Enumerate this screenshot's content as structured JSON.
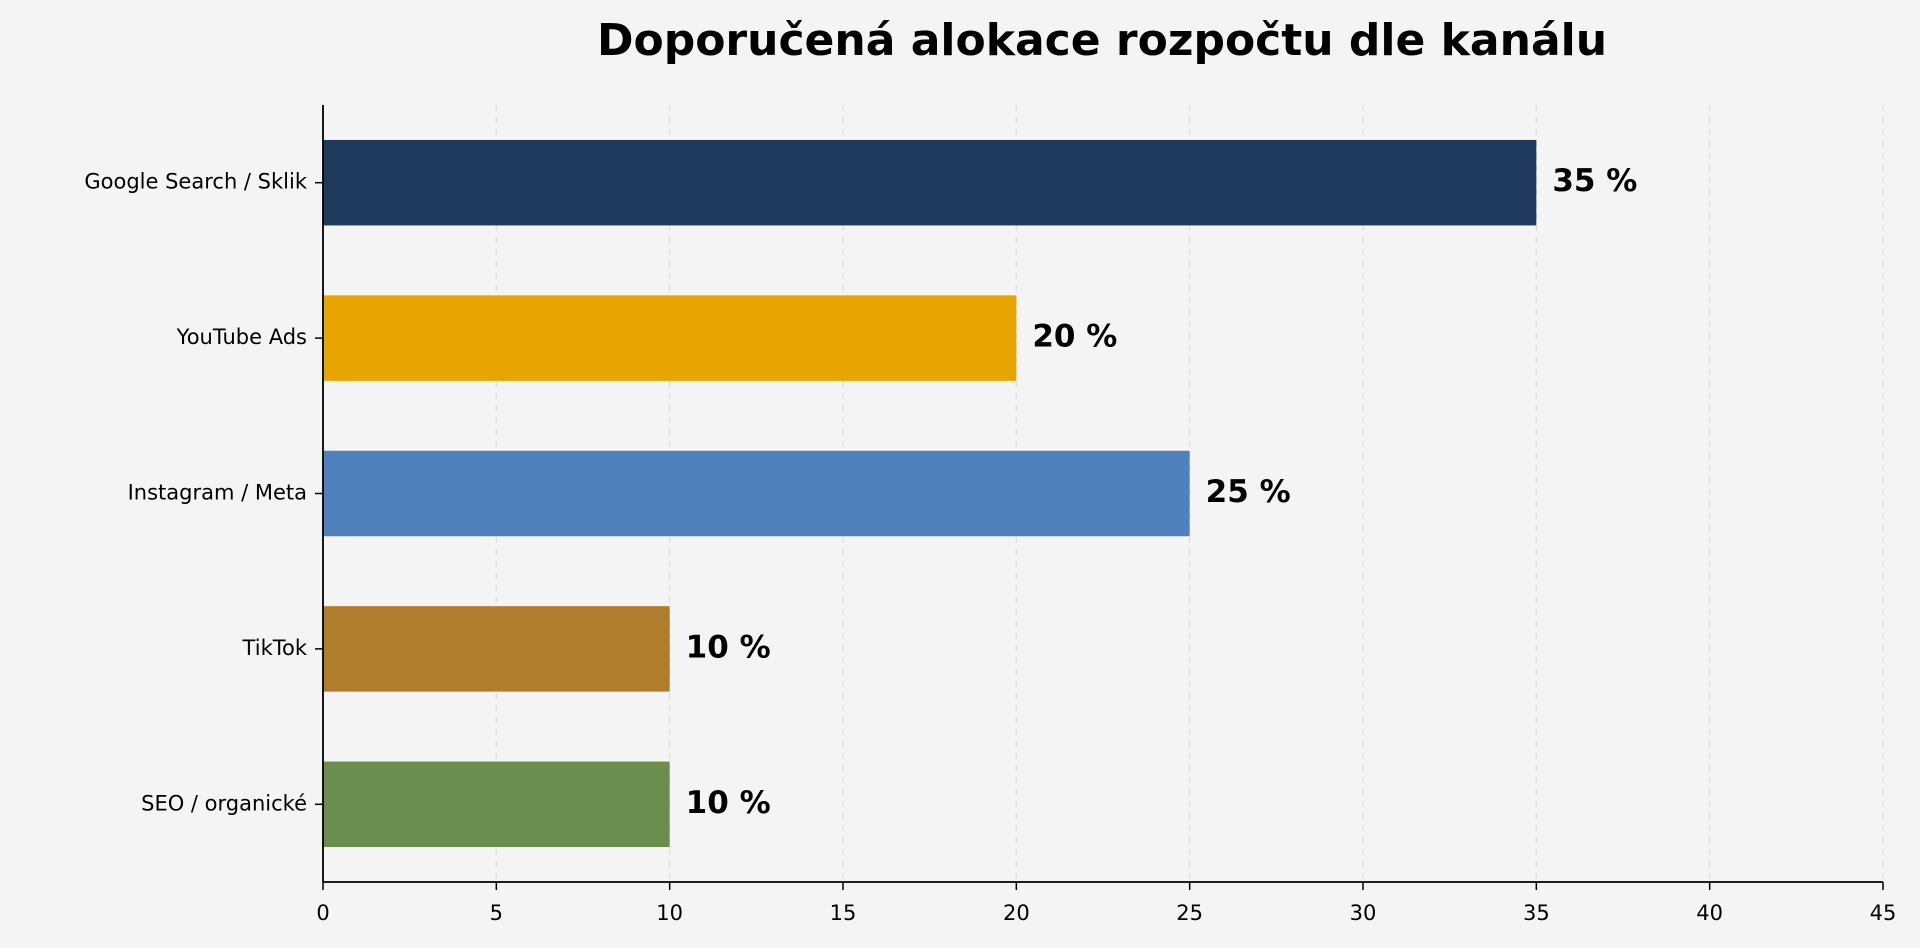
{
  "chart_data": {
    "type": "hbar",
    "title": "Doporučená alokace rozpočtu dle kanálu",
    "categories": [
      "Google Search / Sklik",
      "YouTube Ads",
      "Instagram / Meta",
      "TikTok",
      "SEO / organické"
    ],
    "values": [
      35,
      20,
      25,
      10,
      10
    ],
    "value_labels": [
      "35 %",
      "20 %",
      "25 %",
      "10 %",
      "10 %"
    ],
    "colors": [
      "#1f3a5f",
      "#e6a500",
      "#4f81bd",
      "#b07d2e",
      "#6b8e4e"
    ],
    "xlim": [
      0,
      45
    ],
    "xticks": [
      0,
      5,
      10,
      15,
      20,
      25,
      30,
      35,
      40,
      45
    ],
    "grid": true
  }
}
